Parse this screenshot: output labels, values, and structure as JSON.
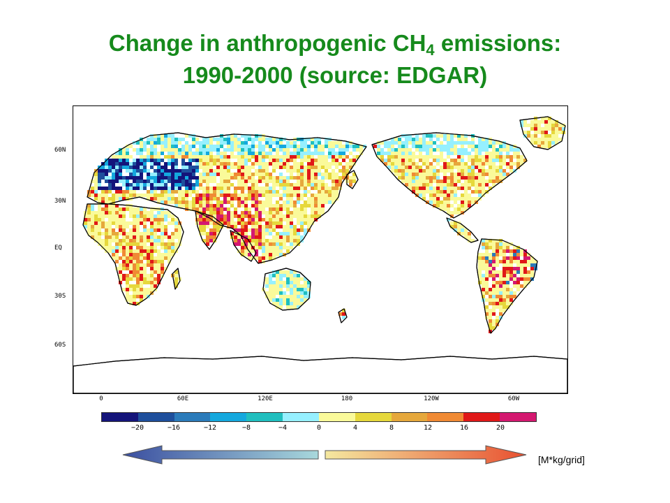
{
  "title": {
    "line1_prefix": "Change in anthropogenic CH",
    "line1_sub": "4",
    "line1_suffix": " emissions:",
    "line2": "1990-2000 (source: EDGAR)"
  },
  "map": {
    "lat_labels": [
      "60N",
      "30N",
      "EQ",
      "30S",
      "60S"
    ],
    "lon_labels": [
      "0",
      "60E",
      "120E",
      "180",
      "120W",
      "60W"
    ]
  },
  "colorbar": {
    "colors": [
      "#14147a",
      "#1e4f9c",
      "#2b7bba",
      "#14a8de",
      "#20bfbf",
      "#96f0ff",
      "#fafa9a",
      "#e6d83c",
      "#e6a83c",
      "#f08a34",
      "#e01818",
      "#d41870"
    ],
    "tick_labels": [
      "-20",
      "-16",
      "-12",
      "-8",
      "-4",
      "0",
      "4",
      "8",
      "12",
      "16",
      "20"
    ]
  },
  "units": "[M*kg/grid]",
  "arrows": {
    "negative_colors": [
      "#3a4ea0",
      "#a8d8dc"
    ],
    "positive_colors": [
      "#f4e8a0",
      "#e85030"
    ]
  }
}
